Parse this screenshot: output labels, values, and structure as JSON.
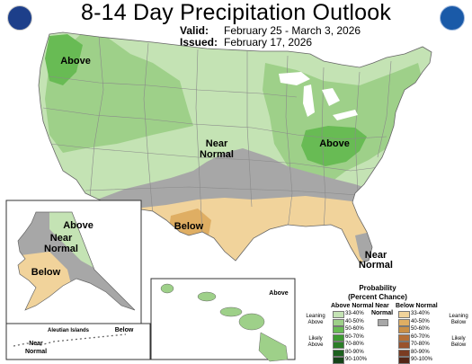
{
  "header": {
    "title": "8-14 Day Precipitation Outlook",
    "valid_label": "Valid:",
    "valid_dates": "February 25 - March 3, 2026",
    "issued_label": "Issued:",
    "issued_date": "February 17, 2026"
  },
  "logos": {
    "left": "department-of-commerce-seal-icon",
    "right": "noaa-logo-icon"
  },
  "colors": {
    "above_33_40": "#c4e3b4",
    "above_40_50": "#9ed089",
    "above_50_60": "#68bb54",
    "above_60_70": "#3e9b32",
    "above_70_80": "#2b7e28",
    "above_80_90": "#1d611f",
    "above_90_100": "#154418",
    "near_normal": "#a7a7a7",
    "below_33_40": "#f1d39b",
    "below_40_50": "#dfae63",
    "below_50_60": "#c98f46",
    "below_60_70": "#b56f36",
    "below_70_80": "#99522c",
    "below_80_90": "#7a3c22",
    "below_90_100": "#542616",
    "state_lines": "#8a8a8a",
    "ocean": "#ffffff"
  },
  "map_labels": {
    "pnw_above": "Above",
    "ohio_above": "Above",
    "plains_near_normal_1": "Near",
    "plains_near_normal_2": "Normal",
    "texas_below": "Below",
    "florida_near_normal_1": "Near",
    "florida_near_normal_2": "Normal",
    "alaska_above": "Above",
    "alaska_near_1": "Near",
    "alaska_near_2": "Normal",
    "alaska_below": "Below",
    "aleutian_title": "Aleutian Islands",
    "aleutian_near_1": "Near",
    "aleutian_near_2": "Normal",
    "aleutian_below": "Below",
    "hawaii_above": "Above"
  },
  "legend": {
    "title_line1": "Probability",
    "title_line2": "(Percent Chance)",
    "above_header": "Above Normal",
    "below_header": "Below Normal",
    "near_normal_1": "Near",
    "near_normal_2": "Normal",
    "leaning_above_1": "Leaning",
    "leaning_above_2": "Above",
    "likely_above_1": "Likely",
    "likely_above_2": "Above",
    "leaning_below_1": "Leaning",
    "leaning_below_2": "Below",
    "likely_below_1": "Likely",
    "likely_below_2": "Below",
    "above_items": [
      "33-40%",
      "40-50%",
      "50-60%",
      "60-70%",
      "70-80%",
      "80-90%",
      "90-100%"
    ],
    "below_items": [
      "33-40%",
      "40-50%",
      "50-60%",
      "60-70%",
      "70-80%",
      "80-90%",
      "90-100%"
    ]
  }
}
